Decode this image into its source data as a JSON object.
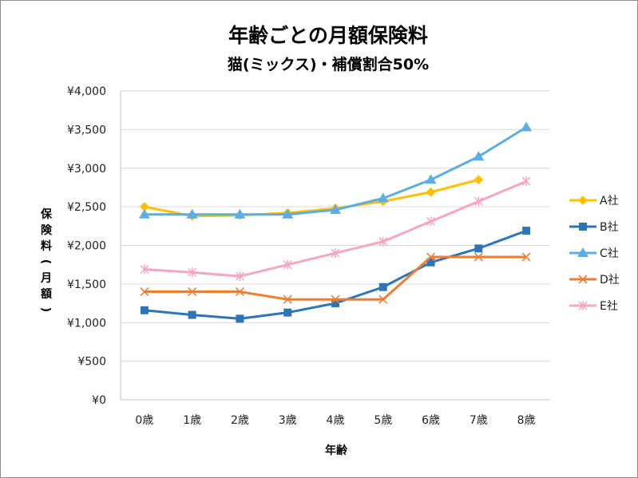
{
  "chart_data": {
    "type": "line",
    "title": "年齢ごとの月額保険料",
    "subtitle": "猫(ミックス)・補償割合50%",
    "xlabel": "年齢",
    "ylabel": "保険料(月額)",
    "categories": [
      "0歳",
      "1歳",
      "2歳",
      "3歳",
      "4歳",
      "5歳",
      "6歳",
      "7歳",
      "8歳"
    ],
    "ylim": [
      0,
      4000
    ],
    "yticks": [
      0,
      500,
      1000,
      1500,
      2000,
      2500,
      3000,
      3500,
      4000
    ],
    "ytick_labels": [
      "¥0",
      "¥500",
      "¥1,000",
      "¥1,500",
      "¥2,000",
      "¥2,500",
      "¥3,000",
      "¥3,500",
      "¥4,000"
    ],
    "grid": "horizontal",
    "legend_position": "right",
    "series": [
      {
        "name": "A社",
        "color": "#FFC000",
        "marker": "diamond",
        "values": [
          2500,
          2380,
          2390,
          2420,
          2480,
          2570,
          2690,
          2850,
          null
        ]
      },
      {
        "name": "B社",
        "color": "#2E75B6",
        "marker": "square",
        "values": [
          1160,
          1100,
          1050,
          1130,
          1250,
          1460,
          1780,
          1960,
          2190
        ]
      },
      {
        "name": "C社",
        "color": "#5DADE2",
        "marker": "triangle",
        "values": [
          2400,
          2400,
          2400,
          2400,
          2460,
          2610,
          2850,
          3150,
          3530
        ]
      },
      {
        "name": "D社",
        "color": "#ED7D31",
        "marker": "x",
        "values": [
          1400,
          1400,
          1400,
          1300,
          1300,
          1300,
          1850,
          1850,
          1850
        ]
      },
      {
        "name": "E社",
        "color": "#F4A6C7",
        "marker": "star",
        "values": [
          1690,
          1650,
          1600,
          1750,
          1900,
          2050,
          2310,
          2570,
          2830
        ]
      }
    ]
  }
}
